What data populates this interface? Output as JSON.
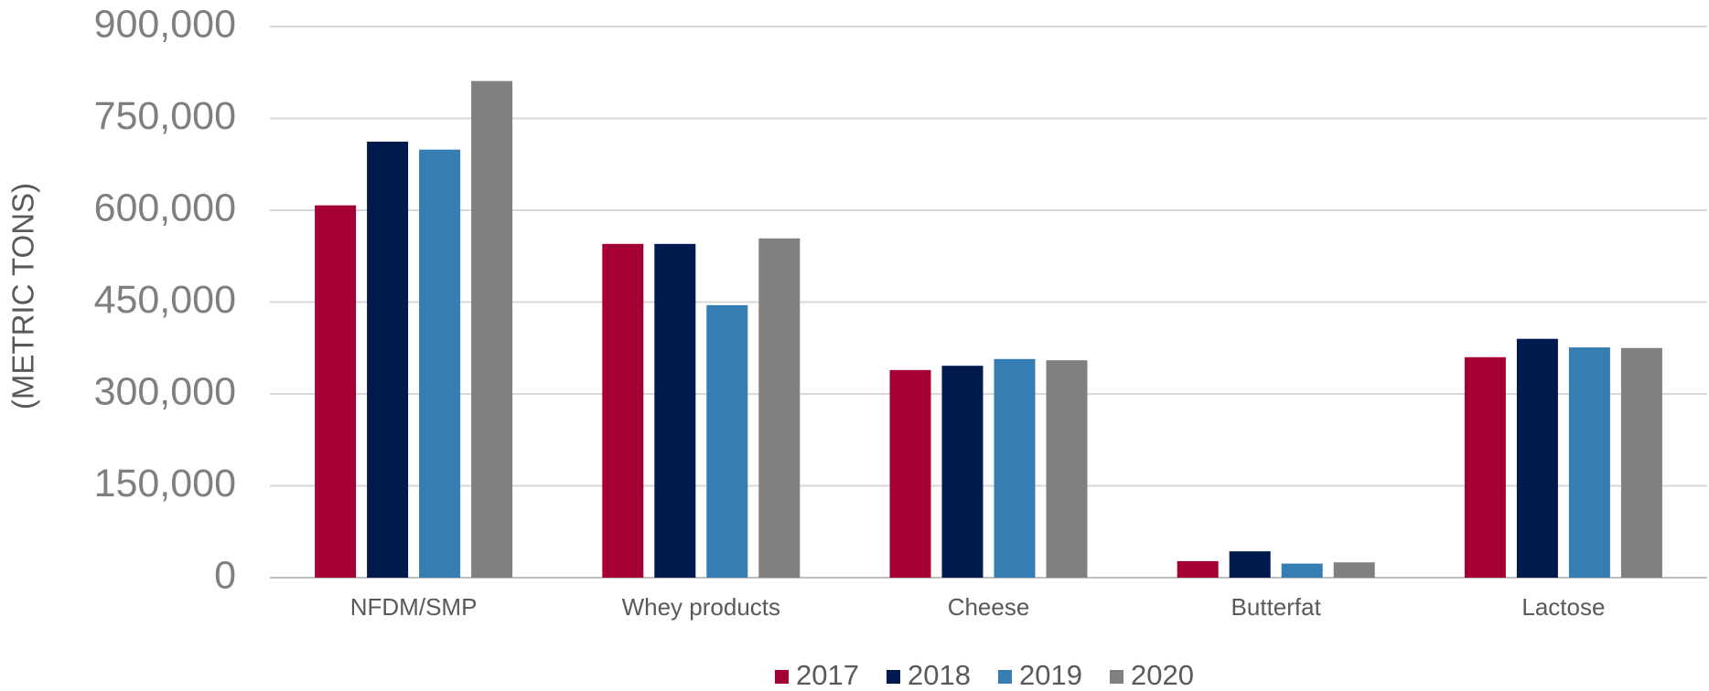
{
  "chart_data": {
    "type": "bar",
    "y_label": "(METRIC TONS)",
    "categories": [
      "NFDM/SMP",
      "Whey products",
      "Cheese",
      "Butterfat",
      "Lactose"
    ],
    "series": [
      {
        "name": "2017",
        "color": "#a50034",
        "values": [
          608000,
          545000,
          339000,
          27000,
          360000
        ]
      },
      {
        "name": "2018",
        "color": "#001a4d",
        "values": [
          712000,
          545000,
          346000,
          43000,
          390000
        ]
      },
      {
        "name": "2019",
        "color": "#357db3",
        "values": [
          699000,
          445000,
          357000,
          23000,
          376000
        ]
      },
      {
        "name": "2020",
        "color": "#808080",
        "values": [
          811000,
          554000,
          355000,
          25000,
          375000
        ]
      }
    ],
    "ylim": [
      0,
      900000
    ],
    "yticks": [
      0,
      {
        "value": 150000,
        "label": "150,000"
      },
      {
        "value": 300000,
        "label": "300,000"
      },
      {
        "value": 450000,
        "label": "450,000"
      },
      {
        "value": 600000,
        "label": "600,000"
      },
      {
        "value": 750000,
        "label": "750,000"
      },
      {
        "value": 900000,
        "label": "900,000"
      }
    ],
    "grid": true,
    "legend": "bottom"
  }
}
